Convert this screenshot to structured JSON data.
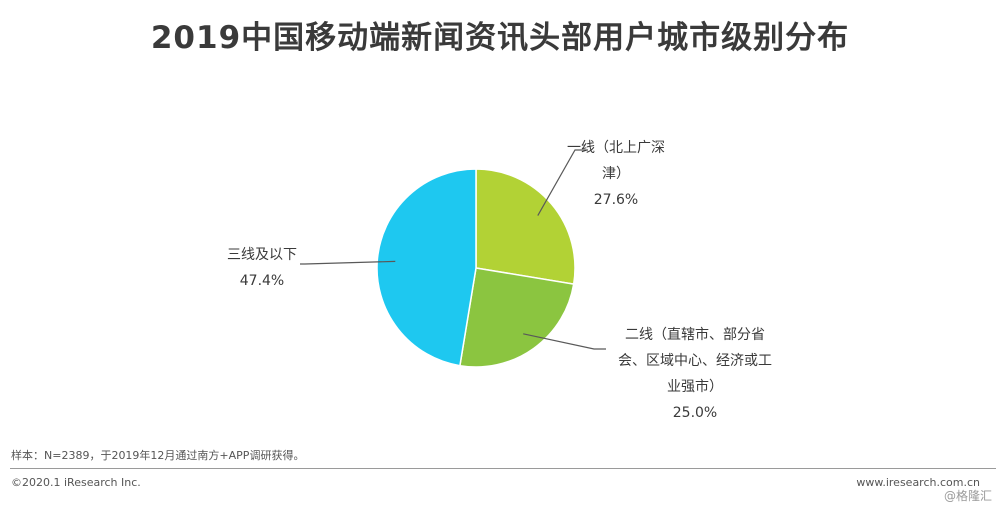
{
  "header": {
    "title": "2019中国移动端新闻资讯头部用户城市级别分布"
  },
  "chart_data": {
    "type": "pie",
    "title": "2019中国移动端新闻资讯头部用户城市级别分布",
    "unit": "%",
    "slices": [
      {
        "label_lines": [
          "一线（北上广深",
          "津）"
        ],
        "value": 27.6,
        "value_label": "27.6%",
        "color": "#b2d235"
      },
      {
        "label_lines": [
          "二线（直辖市、部分省",
          "会、区域中心、经济或工",
          "业强市）"
        ],
        "value": 25.0,
        "value_label": "25.0%",
        "color": "#8bc540"
      },
      {
        "label_lines": [
          "三线及以下"
        ],
        "value": 47.4,
        "value_label": "47.4%",
        "color": "#1ec8f0"
      }
    ],
    "start_angle": "12 o'clock",
    "direction": "clockwise",
    "legend": "none",
    "leader_line_color": "#595959"
  },
  "footer": {
    "note": "样本：N=2389，于2019年12月通过南方+APP调研获得。",
    "copyright": "©2020.1 iResearch Inc.",
    "site": "www.iresearch.com.cn",
    "watermark": "@格隆汇"
  }
}
